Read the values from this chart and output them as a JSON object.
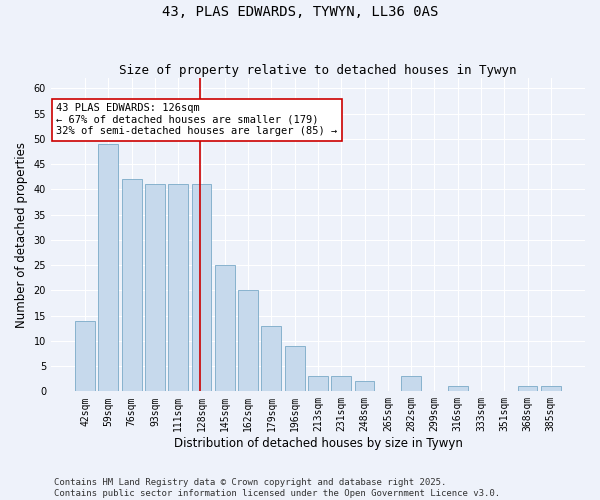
{
  "title": "43, PLAS EDWARDS, TYWYN, LL36 0AS",
  "subtitle": "Size of property relative to detached houses in Tywyn",
  "xlabel": "Distribution of detached houses by size in Tywyn",
  "ylabel": "Number of detached properties",
  "categories": [
    "42sqm",
    "59sqm",
    "76sqm",
    "93sqm",
    "111sqm",
    "128sqm",
    "145sqm",
    "162sqm",
    "179sqm",
    "196sqm",
    "213sqm",
    "231sqm",
    "248sqm",
    "265sqm",
    "282sqm",
    "299sqm",
    "316sqm",
    "333sqm",
    "351sqm",
    "368sqm",
    "385sqm"
  ],
  "values": [
    14,
    49,
    42,
    41,
    41,
    41,
    25,
    20,
    13,
    9,
    3,
    3,
    2,
    0,
    3,
    0,
    1,
    0,
    0,
    1,
    1
  ],
  "bar_color": "#c6d9ec",
  "bar_edge_color": "#7aaac8",
  "background_color": "#eef2fa",
  "grid_color": "#ffffff",
  "vline_color": "#cc0000",
  "vline_xindex": 5,
  "annotation_text": "43 PLAS EDWARDS: 126sqm\n← 67% of detached houses are smaller (179)\n32% of semi-detached houses are larger (85) →",
  "annotation_box_color": "#cc0000",
  "ylim": [
    0,
    62
  ],
  "yticks": [
    0,
    5,
    10,
    15,
    20,
    25,
    30,
    35,
    40,
    45,
    50,
    55,
    60
  ],
  "footer": "Contains HM Land Registry data © Crown copyright and database right 2025.\nContains public sector information licensed under the Open Government Licence v3.0.",
  "title_fontsize": 10,
  "subtitle_fontsize": 9,
  "xlabel_fontsize": 8.5,
  "ylabel_fontsize": 8.5,
  "tick_fontsize": 7,
  "annotation_fontsize": 7.5,
  "footer_fontsize": 6.5
}
